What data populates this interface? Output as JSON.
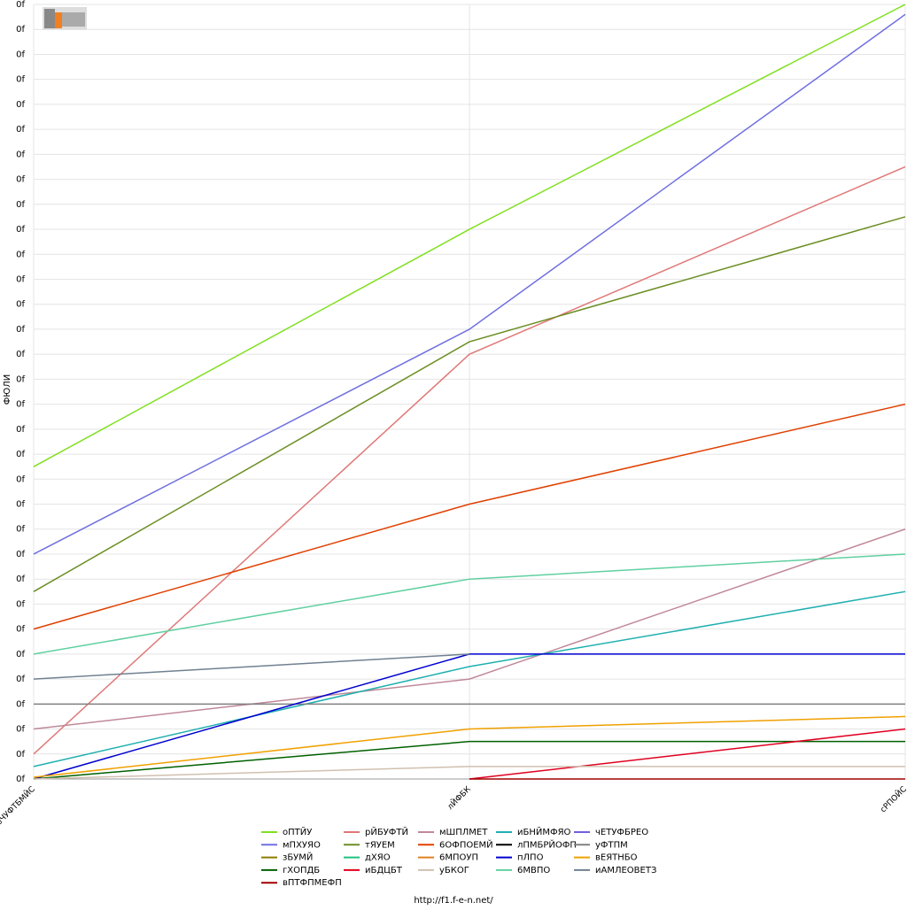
{
  "chart_data": {
    "type": "line",
    "y_label": "ФЮЛИ",
    "footer": "http://f1.f-e-n.net/",
    "categories": [
      "бЧУФТБМЙС",
      "лЙФБК",
      "сРПОЙС"
    ],
    "ylim": [
      0,
      31
    ],
    "yticks": [
      {
        "value": 0,
        "label": "0f"
      },
      {
        "value": 1,
        "label": "0f"
      },
      {
        "value": 2,
        "label": "0f"
      },
      {
        "value": 3,
        "label": "0f"
      },
      {
        "value": 4,
        "label": "0f"
      },
      {
        "value": 5,
        "label": "0f"
      },
      {
        "value": 6,
        "label": "0f"
      },
      {
        "value": 7,
        "label": "0f"
      },
      {
        "value": 8,
        "label": "0f"
      },
      {
        "value": 9,
        "label": "0f"
      },
      {
        "value": 10,
        "label": "0f"
      },
      {
        "value": 11,
        "label": "0f"
      },
      {
        "value": 12,
        "label": "0f"
      },
      {
        "value": 13,
        "label": "0f"
      },
      {
        "value": 14,
        "label": "0f"
      },
      {
        "value": 15,
        "label": "0f"
      },
      {
        "value": 16,
        "label": "0f"
      },
      {
        "value": 17,
        "label": "0f"
      },
      {
        "value": 18,
        "label": "0f"
      },
      {
        "value": 19,
        "label": "0f"
      },
      {
        "value": 20,
        "label": "0f"
      },
      {
        "value": 21,
        "label": "0f"
      },
      {
        "value": 22,
        "label": "0f"
      },
      {
        "value": 23,
        "label": "0f"
      },
      {
        "value": 24,
        "label": "0f"
      },
      {
        "value": 25,
        "label": "0f"
      },
      {
        "value": 26,
        "label": "0f"
      },
      {
        "value": 27,
        "label": "0f"
      },
      {
        "value": 28,
        "label": "0f"
      },
      {
        "value": 29,
        "label": "0f"
      },
      {
        "value": 30,
        "label": "0f"
      },
      {
        "value": 31,
        "label": "0f"
      }
    ],
    "grid": true,
    "series": [
      {
        "name": "оПТЙУ",
        "color": "#80e020",
        "values": [
          12.5,
          22,
          31
        ]
      },
      {
        "name": "рЙБУФТЙ",
        "color": "#e07878",
        "values": [
          1,
          17,
          24.5
        ]
      },
      {
        "name": "мШПЛМЕТ",
        "color": "#c08898",
        "values": [
          2,
          4,
          10
        ]
      },
      {
        "name": "иБНЙМФЯО",
        "color": "#20b0b0",
        "values": [
          0.5,
          4.5,
          7.5
        ]
      },
      {
        "name": "чЕТУФБРЕО",
        "color": "#7060e0",
        "values": [
          null,
          null,
          null
        ]
      },
      {
        "name": "мПХУЯО",
        "color": "#7070e0",
        "values": [
          9,
          18,
          30.6
        ]
      },
      {
        "name": "тЯУЕМ",
        "color": "#6b8e23",
        "values": [
          7.5,
          17.5,
          22.5
        ]
      },
      {
        "name": "6ОФПОЕМЙ",
        "color": "#e04000",
        "values": [
          6,
          11,
          15
        ]
      },
      {
        "name": "лПМБРЙОФП",
        "color": "#000000",
        "values": [
          null,
          null,
          null
        ]
      },
      {
        "name": "уФТПМ",
        "color": "#808080",
        "values": [
          3,
          3,
          3
        ]
      },
      {
        "name": "зБУМЙ",
        "color": "#8b7d00",
        "values": [
          null,
          null,
          null
        ]
      },
      {
        "name": "дХЯО",
        "color": "#20c080",
        "values": [
          null,
          null,
          null
        ]
      },
      {
        "name": "6МПОУП",
        "color": "#e08020",
        "values": [
          null,
          null,
          null
        ]
      },
      {
        "name": "пЛПО",
        "color": "#0000d0",
        "values": [
          0,
          5,
          5
        ]
      },
      {
        "name": "вЕЯТНБО",
        "color": "#f0a000",
        "values": [
          0.07,
          2,
          2.5
        ]
      },
      {
        "name": "гХОПДБ",
        "color": "#006000",
        "values": [
          0,
          1.5,
          1.5
        ]
      },
      {
        "name": "иБДЦБТ",
        "color": "#e00020",
        "values": [
          null,
          0,
          2
        ]
      },
      {
        "name": "уБКОГ",
        "color": "#d0c0b0",
        "values": [
          0,
          0.5,
          0.5
        ]
      },
      {
        "name": "6МВПО",
        "color": "#60d0a0",
        "values": [
          5,
          8,
          9
        ]
      },
      {
        "name": "иАМЛЕОВЕТЗ",
        "color": "#708090",
        "values": [
          4,
          5,
          null
        ]
      },
      {
        "name": "вПТФПМЕФП",
        "color": "#a00000",
        "values": [
          null,
          0,
          0
        ]
      }
    ]
  }
}
